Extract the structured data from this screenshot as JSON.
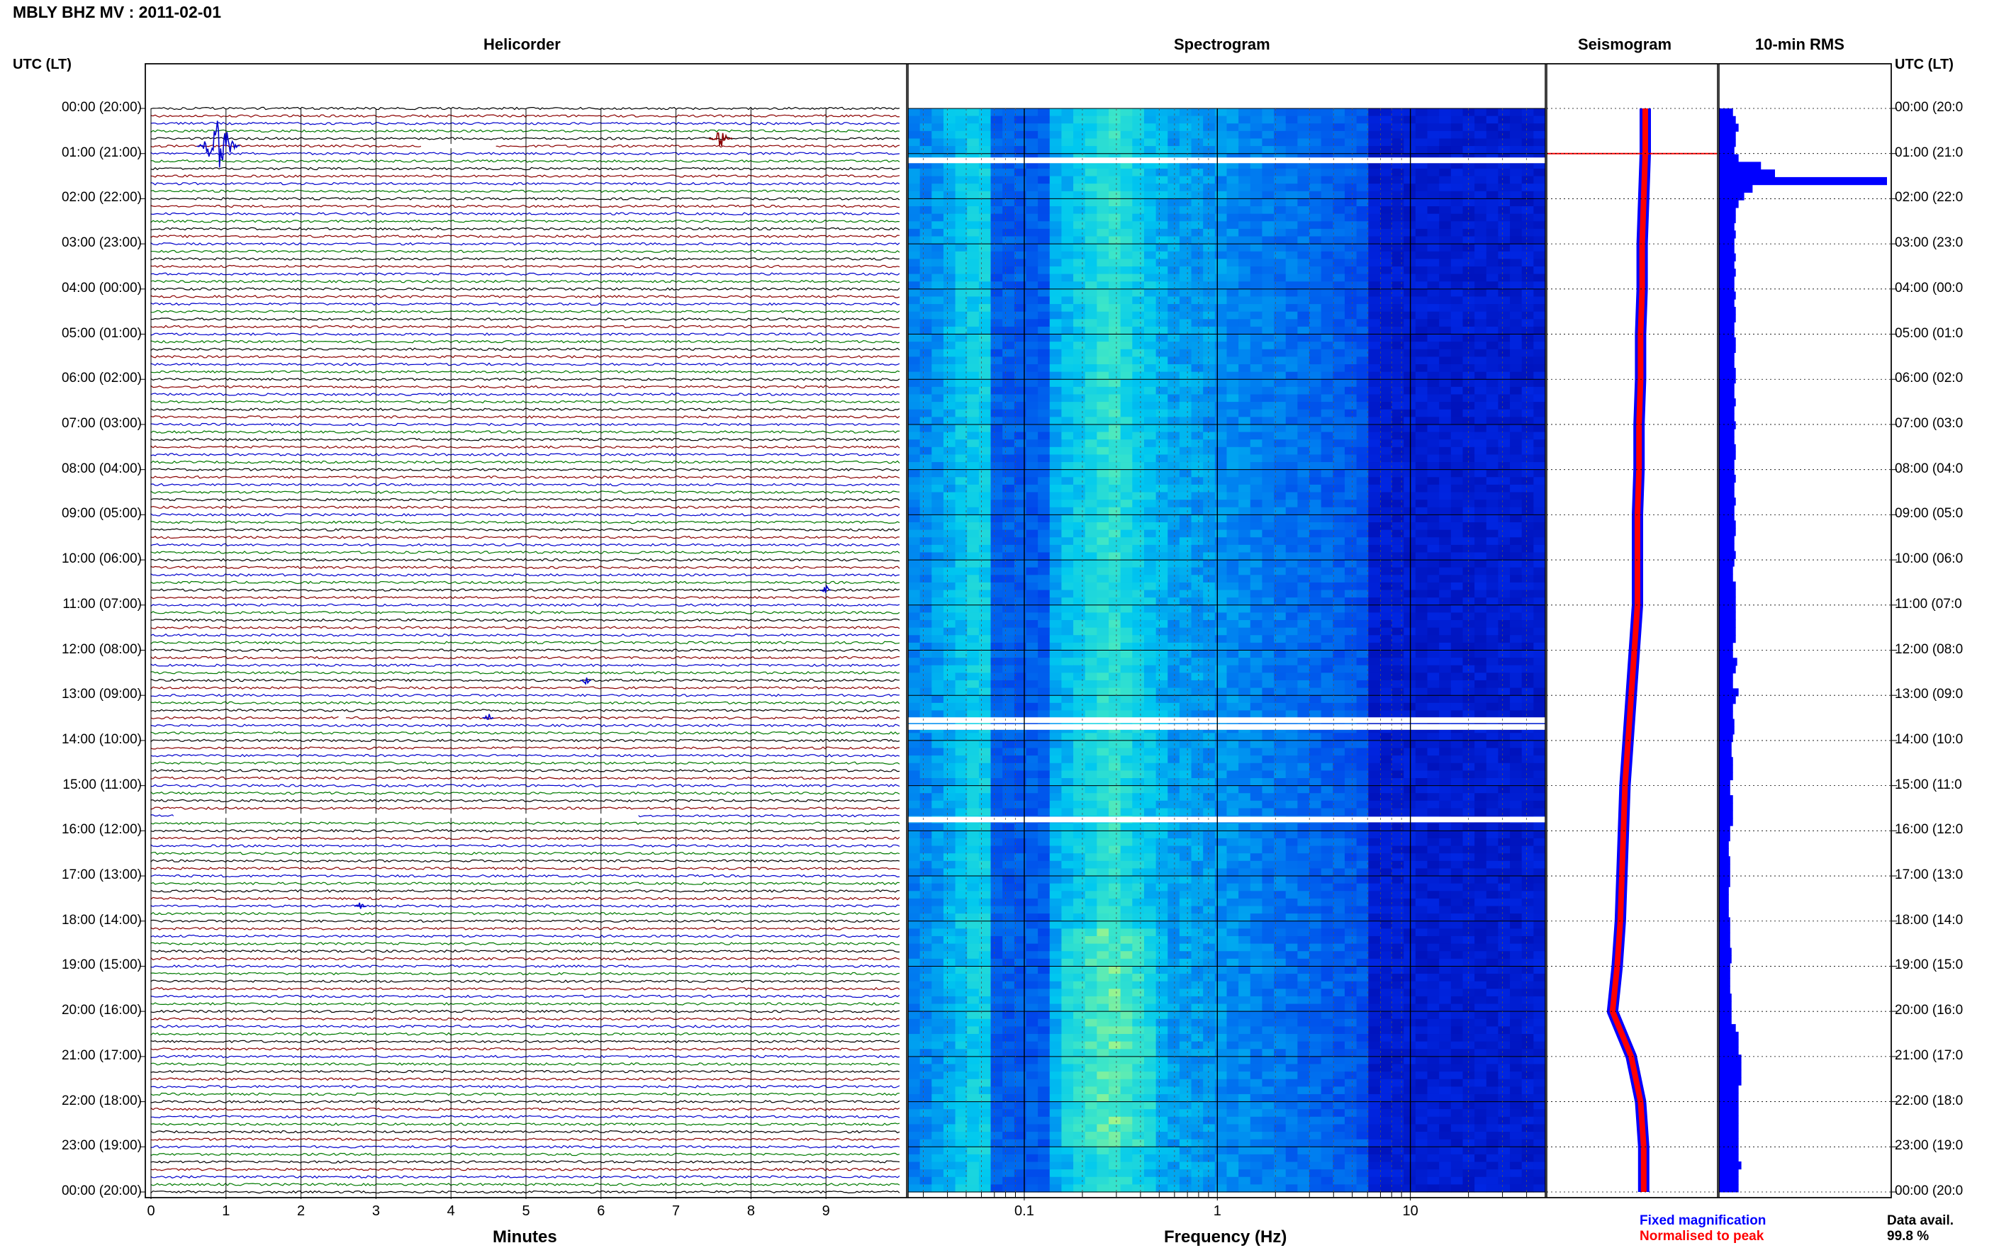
{
  "header": {
    "station_title": "MBLY BHZ MV : 2011-02-01",
    "utc_lt_left": "UTC (LT)",
    "utc_lt_right": "UTC (LT)"
  },
  "panels": {
    "helicorder": "Helicorder",
    "spectrogram": "Spectrogram",
    "seismogram": "Seismogram",
    "rms": "10-min RMS"
  },
  "hour_labels": [
    "00:00 (20:00)",
    "01:00 (21:00)",
    "02:00 (22:00)",
    "03:00 (23:00)",
    "04:00 (00:00)",
    "05:00 (01:00)",
    "06:00 (02:00)",
    "07:00 (03:00)",
    "08:00 (04:00)",
    "09:00 (05:00)",
    "10:00 (06:00)",
    "11:00 (07:00)",
    "12:00 (08:00)",
    "13:00 (09:00)",
    "14:00 (10:00)",
    "15:00 (11:00)",
    "16:00 (12:00)",
    "17:00 (13:00)",
    "18:00 (14:00)",
    "19:00 (15:00)",
    "20:00 (16:00)",
    "21:00 (17:00)",
    "22:00 (18:00)",
    "23:00 (19:00)",
    "00:00 (20:00)"
  ],
  "hour_labels_right": [
    "00:00 (20:0",
    "01:00 (21:0",
    "02:00 (22:0",
    "03:00 (23:0",
    "04:00 (00:0",
    "05:00 (01:0",
    "06:00 (02:0",
    "07:00 (03:0",
    "08:00 (04:0",
    "09:00 (05:0",
    "10:00 (06:0",
    "11:00 (07:0",
    "12:00 (08:0",
    "13:00 (09:0",
    "14:00 (10:0",
    "15:00 (11:0",
    "16:00 (12:0",
    "17:00 (13:0",
    "18:00 (14:0",
    "19:00 (15:0",
    "20:00 (16:0",
    "21:00 (17:0",
    "22:00 (18:0",
    "23:00 (19:0",
    "00:00 (20:0"
  ],
  "footer": {
    "fixed_magnification": "Fixed magnification",
    "normalised_to_peak": "Normalised to peak",
    "data_avail_label": "Data avail.",
    "data_avail_value": "99.8 %"
  },
  "colors": {
    "trace_black": "#000000",
    "trace_red": "#8b0000",
    "trace_blue": "#0000cc",
    "trace_green": "#007a00",
    "rms_blue": "#0000ff",
    "seismo_red": "#ff0000",
    "fixed_mag_blue": "#0000ff",
    "normalised_red": "#ff0000"
  },
  "chart_data": [
    {
      "type": "line",
      "panel": "helicorder",
      "title": "Helicorder",
      "xlabel": "Minutes",
      "x_ticks": [
        0,
        1,
        2,
        3,
        4,
        5,
        6,
        7,
        8,
        9
      ],
      "xlim": [
        0,
        10
      ],
      "ylim_hours": [
        0,
        24
      ],
      "traces_per_hour": 6,
      "trace_minutes": 10,
      "trace_color_cycle": [
        "black",
        "red",
        "blue",
        "green"
      ],
      "events": [
        {
          "hour": 0.833,
          "minute": 0.9,
          "amplitude": "large"
        },
        {
          "hour": 0.667,
          "minute": 7.6,
          "amplitude": "medium"
        },
        {
          "hour": 10.667,
          "minute": 9.0,
          "amplitude": "small"
        },
        {
          "hour": 12.667,
          "minute": 5.8,
          "amplitude": "small"
        },
        {
          "hour": 13.5,
          "minute": 4.5,
          "amplitude": "small"
        },
        {
          "hour": 17.667,
          "minute": 2.8,
          "amplitude": "small"
        }
      ],
      "data_gaps": [
        {
          "hour": 0.833,
          "minute_start": 3.6,
          "minute_end": 4.6
        },
        {
          "hour": 13.5,
          "minute_start": 2.5,
          "minute_end": 2.6
        },
        {
          "hour": 15.667,
          "minute_start": 0.3,
          "minute_end": 6.5
        }
      ]
    },
    {
      "type": "heatmap",
      "panel": "spectrogram",
      "title": "Spectrogram",
      "xlabel": "Frequency (Hz)",
      "x_scale": "log",
      "xlim": [
        0.025,
        50
      ],
      "x_ticks": [
        0.1,
        1,
        10
      ],
      "ylim_hours": [
        0,
        24
      ],
      "energy_peak_band_hz": [
        0.15,
        0.5
      ],
      "gaps_hours": [
        1.15,
        13.55,
        13.7,
        15.75
      ]
    },
    {
      "type": "line",
      "panel": "seismogram",
      "title": "Seismogram",
      "ylim_hours": [
        0,
        24
      ],
      "series": [
        {
          "name": "Fixed magnification",
          "color": "blue",
          "hour": [
            0,
            1,
            2,
            3,
            4,
            5,
            6,
            7,
            8,
            9,
            10,
            11,
            12,
            13,
            14,
            15,
            16,
            17,
            18,
            19,
            20,
            21,
            22,
            23,
            24
          ],
          "offset": [
            0.5,
            0.5,
            0.4,
            0.3,
            0.3,
            0.2,
            0.2,
            0.1,
            0.1,
            0,
            0,
            0,
            -0.2,
            -0.4,
            -0.6,
            -0.8,
            -0.9,
            -1.0,
            -1.1,
            -1.3,
            -1.6,
            -0.4,
            0.2,
            0.4,
            0.4
          ]
        },
        {
          "name": "Normalised to peak",
          "color": "red",
          "hour": [
            0,
            1,
            2,
            3,
            4,
            5,
            6,
            7,
            8,
            9,
            10,
            11,
            12,
            13,
            14,
            15,
            16,
            17,
            18,
            19,
            20,
            21,
            22,
            23,
            24
          ],
          "offset": [
            0.5,
            0.5,
            0.4,
            0.3,
            0.3,
            0.2,
            0.2,
            0.1,
            0.1,
            0,
            0,
            0,
            -0.2,
            -0.4,
            -0.6,
            -0.8,
            -0.9,
            -1.0,
            -1.1,
            -1.3,
            -1.6,
            -0.4,
            0.2,
            0.4,
            0.4
          ]
        }
      ]
    },
    {
      "type": "bar",
      "panel": "rms",
      "title": "10-min RMS",
      "orientation": "horizontal",
      "interval_minutes": 10,
      "values": [
        10,
        12,
        14,
        12,
        12,
        11,
        14,
        30,
        40,
        120,
        24,
        18,
        14,
        12,
        12,
        11,
        12,
        11,
        11,
        12,
        11,
        12,
        11,
        11,
        12,
        11,
        12,
        12,
        11,
        11,
        12,
        12,
        11,
        11,
        12,
        12,
        11,
        11,
        12,
        11,
        11,
        12,
        11,
        11,
        12,
        12,
        11,
        11,
        12,
        11,
        11,
        12,
        11,
        11,
        12,
        12,
        11,
        11,
        12,
        11,
        10,
        10,
        12,
        12,
        12,
        12,
        12,
        12,
        12,
        12,
        10,
        10,
        13,
        12,
        10,
        10,
        14,
        12,
        10,
        10,
        11,
        11,
        10,
        9,
        9,
        10,
        10,
        10,
        8,
        8,
        10,
        10,
        10,
        10,
        8,
        8,
        7,
        7,
        8,
        8,
        8,
        8,
        7,
        7,
        7,
        7,
        8,
        8,
        8,
        8,
        9,
        9,
        8,
        8,
        8,
        8,
        9,
        9,
        9,
        9,
        12,
        14,
        14,
        14,
        16,
        16,
        16,
        16,
        14,
        14,
        14,
        14,
        14,
        14,
        14,
        14,
        14,
        14,
        16,
        14,
        14,
        14
      ]
    }
  ]
}
